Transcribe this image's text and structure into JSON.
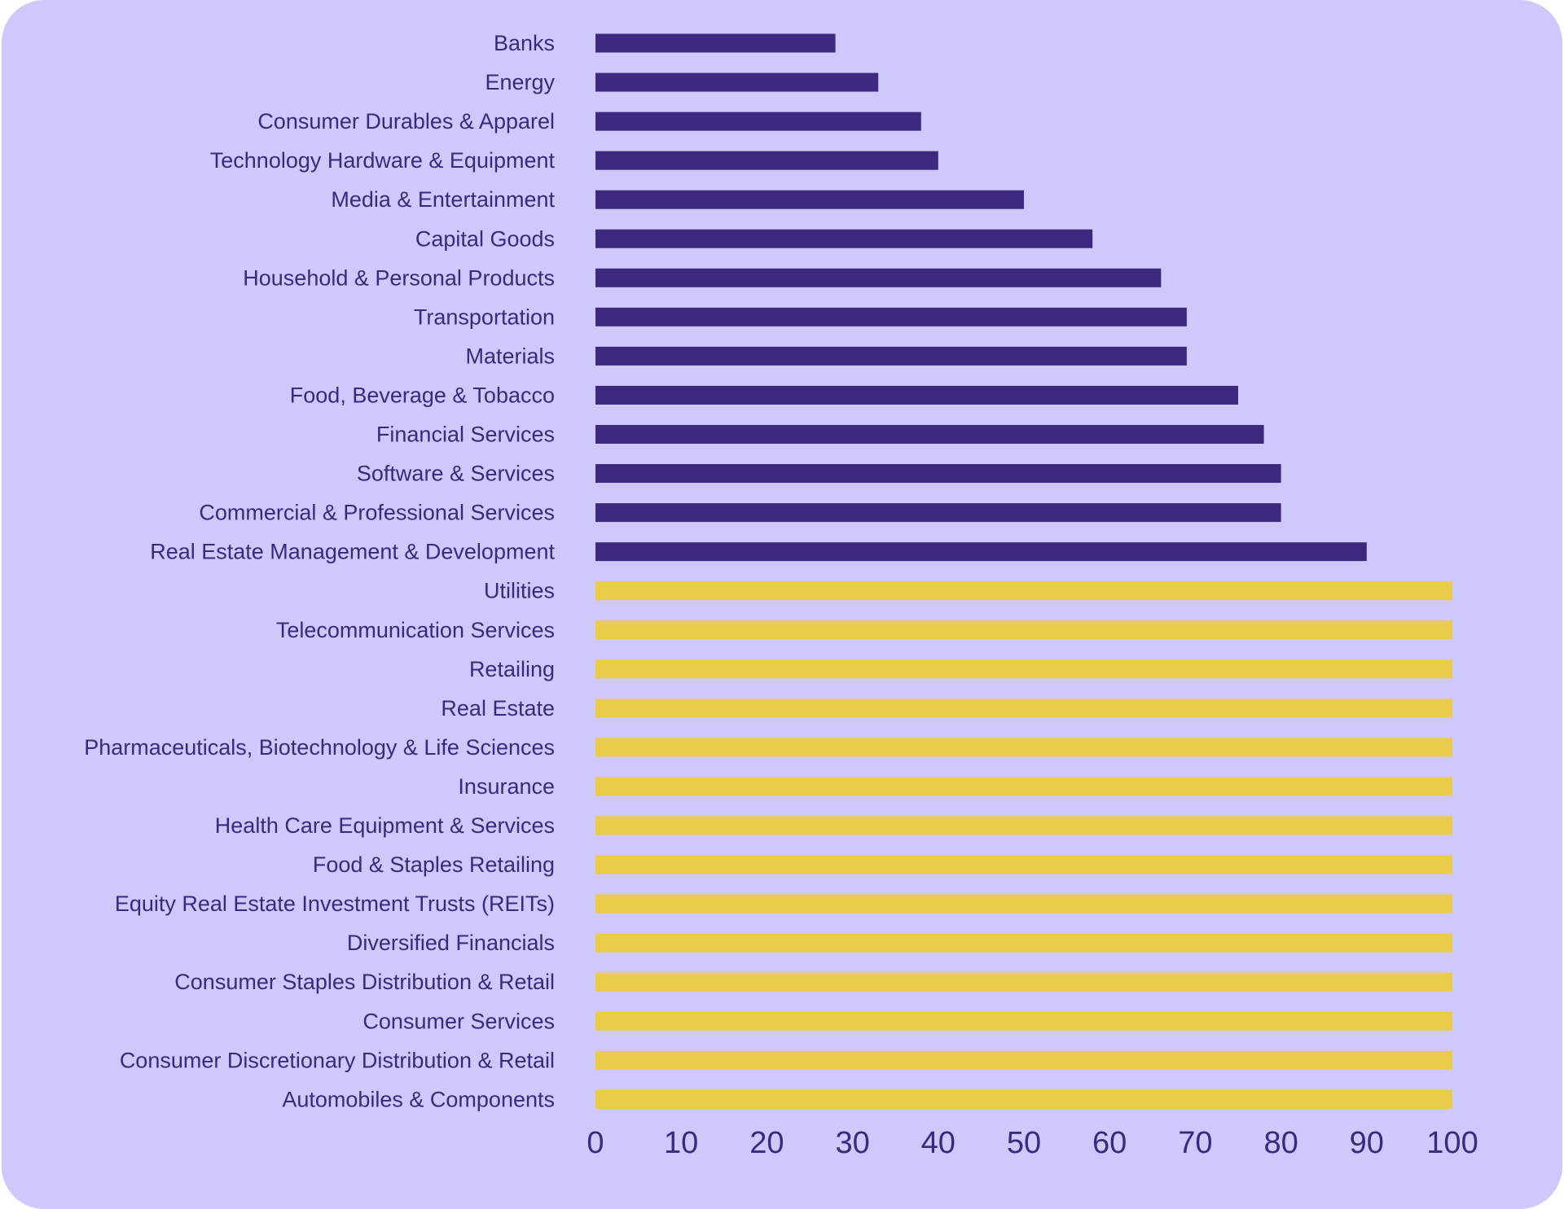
{
  "chart_data": {
    "type": "bar",
    "orientation": "horizontal",
    "categories": [
      "Banks",
      "Energy",
      "Consumer Durables & Apparel",
      "Technology Hardware & Equipment",
      "Media & Entertainment",
      "Capital Goods",
      "Household & Personal Products",
      "Transportation",
      "Materials",
      "Food, Beverage & Tobacco",
      "Financial Services",
      "Software & Services",
      "Commercial & Professional Services",
      "Real Estate Management & Development",
      "Utilities",
      "Telecommunication Services",
      "Retailing",
      "Real Estate",
      "Pharmaceuticals, Biotechnology & Life Sciences",
      "Insurance",
      "Health Care Equipment & Services",
      "Food & Staples Retailing",
      "Equity Real Estate Investment Trusts (REITs)",
      "Diversified Financials",
      "Consumer Staples Distribution & Retail",
      "Consumer Services",
      "Consumer Discretionary Distribution & Retail",
      "Automobiles & Components"
    ],
    "values": [
      28,
      33,
      38,
      40,
      50,
      58,
      66,
      69,
      69,
      75,
      78,
      80,
      80,
      90,
      100,
      100,
      100,
      100,
      100,
      100,
      100,
      100,
      100,
      100,
      100,
      100,
      100,
      100
    ],
    "bar_colors": [
      "#3b2a80",
      "#3b2a80",
      "#3b2a80",
      "#3b2a80",
      "#3b2a80",
      "#3b2a80",
      "#3b2a80",
      "#3b2a80",
      "#3b2a80",
      "#3b2a80",
      "#3b2a80",
      "#3b2a80",
      "#3b2a80",
      "#3b2a80",
      "#ebcb4a",
      "#ebcb4a",
      "#ebcb4a",
      "#ebcb4a",
      "#ebcb4a",
      "#ebcb4a",
      "#ebcb4a",
      "#ebcb4a",
      "#ebcb4a",
      "#ebcb4a",
      "#ebcb4a",
      "#ebcb4a",
      "#ebcb4a",
      "#ebcb4a"
    ],
    "xticks": [
      0,
      10,
      20,
      30,
      40,
      50,
      60,
      70,
      80,
      90,
      100
    ],
    "xlim": [
      0,
      100
    ],
    "title": "",
    "xlabel": "",
    "ylabel": "",
    "grid": false,
    "legend": "none",
    "background_color": "#cfc8fb",
    "text_color": "#3a2a7e"
  }
}
